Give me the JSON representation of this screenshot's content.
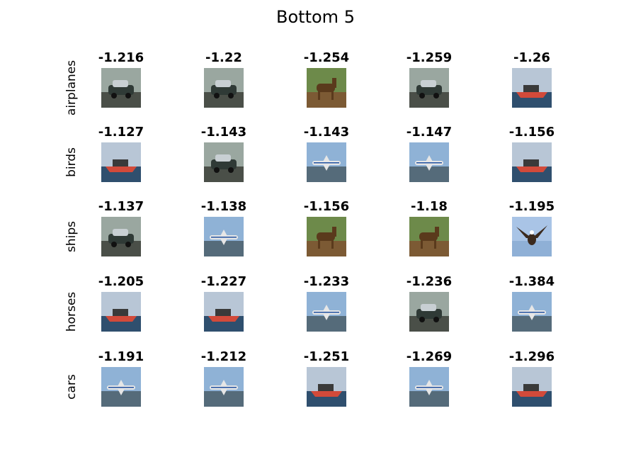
{
  "title": "Bottom 5",
  "rows": [
    {
      "label": "airplanes",
      "scores": [
        "-1.216",
        "-1.22",
        "-1.254",
        "-1.259",
        "-1.26"
      ],
      "thumbs": [
        "car-icon",
        "car-icon",
        "horse-icon",
        "car-icon",
        "ship-icon"
      ]
    },
    {
      "label": "birds",
      "scores": [
        "-1.127",
        "-1.143",
        "-1.143",
        "-1.147",
        "-1.156"
      ],
      "thumbs": [
        "ship-icon",
        "car-icon",
        "airplane-icon",
        "airplane-icon",
        "ship-icon"
      ]
    },
    {
      "label": "ships",
      "scores": [
        "-1.137",
        "-1.138",
        "-1.156",
        "-1.18",
        "-1.195"
      ],
      "thumbs": [
        "car-icon",
        "airplane-icon",
        "horse-icon",
        "horse-icon",
        "bird-icon"
      ]
    },
    {
      "label": "horses",
      "scores": [
        "-1.205",
        "-1.227",
        "-1.233",
        "-1.236",
        "-1.384"
      ],
      "thumbs": [
        "ship-icon",
        "ship-icon",
        "airplane-icon",
        "car-icon",
        "airplane-icon"
      ]
    },
    {
      "label": "cars",
      "scores": [
        "-1.191",
        "-1.212",
        "-1.251",
        "-1.269",
        "-1.296"
      ],
      "thumbs": [
        "airplane-icon",
        "airplane-icon",
        "ship-icon",
        "airplane-icon",
        "ship-icon"
      ]
    }
  ]
}
